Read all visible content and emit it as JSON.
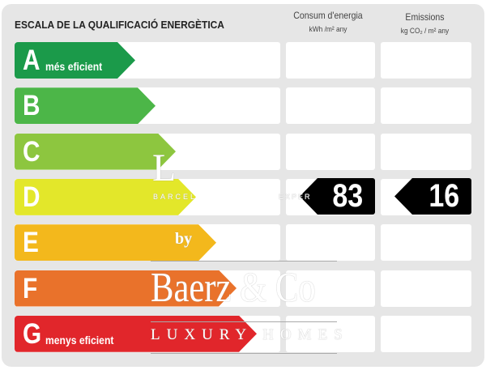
{
  "title": "ESCALA DE LA QUALIFICACIÓ ENERGÈTICA",
  "columns": [
    {
      "label": "Consum d'energia",
      "unit": "kWh /m² any"
    },
    {
      "label": "Emissions",
      "unit": "kg CO₂ / m² any"
    }
  ],
  "ratings": [
    {
      "letter": "A",
      "label": "més eficient",
      "color": "#1b9a4a"
    },
    {
      "letter": "B",
      "label": "",
      "color": "#4cb648"
    },
    {
      "letter": "C",
      "label": "",
      "color": "#8dc63f"
    },
    {
      "letter": "D",
      "label": "",
      "color": "#e3e72a"
    },
    {
      "letter": "E",
      "label": "",
      "color": "#f3b81c"
    },
    {
      "letter": "F",
      "label": "",
      "color": "#e9722b"
    },
    {
      "letter": "G",
      "label": "menys eficient",
      "color": "#e1262b"
    }
  ],
  "current_rating": "D",
  "consumption_value": "83",
  "emissions_value": "16",
  "watermark": {
    "top": "L",
    "city": "BARCEL",
    "experts": "EXPER",
    "by": "by",
    "brand": "Baerz & Co",
    "tagline": "LUXURY HOMES"
  }
}
